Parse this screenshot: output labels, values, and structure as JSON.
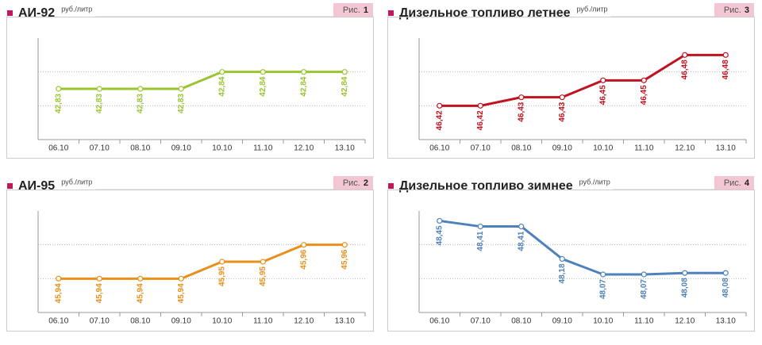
{
  "chart_data": [
    {
      "type": "line",
      "title": "АИ-92",
      "unit": "руб./литр",
      "figure": "Рис.",
      "number": "1",
      "categories": [
        "06.10",
        "07.10",
        "08.10",
        "09.10",
        "10.10",
        "11.10",
        "12.10",
        "13.10"
      ],
      "series": [
        {
          "color": "#9ac531",
          "values": [
            42.83,
            42.83,
            42.83,
            42.83,
            42.84,
            42.84,
            42.84,
            42.84
          ],
          "value_labels": [
            "42,83",
            "42,83",
            "42,83",
            "42,83",
            "42,84",
            "42,84",
            "42,84",
            "42,84"
          ]
        }
      ],
      "ylim": [
        42.8,
        42.86
      ]
    },
    {
      "type": "line",
      "title": "АИ-95",
      "unit": "руб./литр",
      "figure": "Рис.",
      "number": "2",
      "categories": [
        "06.10",
        "07.10",
        "08.10",
        "09.10",
        "10.10",
        "11.10",
        "12.10",
        "13.10"
      ],
      "series": [
        {
          "color": "#e8901a",
          "values": [
            45.94,
            45.94,
            45.94,
            45.94,
            45.95,
            45.95,
            45.96,
            45.96
          ],
          "value_labels": [
            "45,94",
            "45,94",
            "45,94",
            "45,94",
            "45,95",
            "45,95",
            "45,96",
            "45,96"
          ]
        }
      ],
      "ylim": [
        45.92,
        45.98
      ]
    },
    {
      "type": "line",
      "title": "Дизельное топливо летнее",
      "unit": "руб./литр",
      "figure": "Рис.",
      "number": "3",
      "categories": [
        "06.10",
        "07.10",
        "08.10",
        "09.10",
        "10.10",
        "11.10",
        "12.10",
        "13.10"
      ],
      "series": [
        {
          "color": "#c1121f",
          "values": [
            46.42,
            46.42,
            46.43,
            46.43,
            46.45,
            46.45,
            46.48,
            46.48
          ],
          "value_labels": [
            "46,42",
            "46,42",
            "46,43",
            "46,43",
            "46,45",
            "46,45",
            "46,48",
            "46,48"
          ]
        }
      ],
      "ylim": [
        46.38,
        46.5
      ]
    },
    {
      "type": "line",
      "title": "Дизельное топливо зимнее",
      "unit": "руб./литр",
      "figure": "Рис.",
      "number": "4",
      "categories": [
        "06.10",
        "07.10",
        "08.10",
        "09.10",
        "10.10",
        "11.10",
        "12.10",
        "13.10"
      ],
      "series": [
        {
          "color": "#4f81bd",
          "values": [
            48.45,
            48.41,
            48.41,
            48.18,
            48.07,
            48.07,
            48.08,
            48.08
          ],
          "value_labels": [
            "48,45",
            "48,41",
            "48,41",
            "48,18",
            "48,07",
            "48,07",
            "48,08",
            "48,08"
          ]
        }
      ],
      "ylim": [
        47.8,
        48.52
      ]
    }
  ]
}
